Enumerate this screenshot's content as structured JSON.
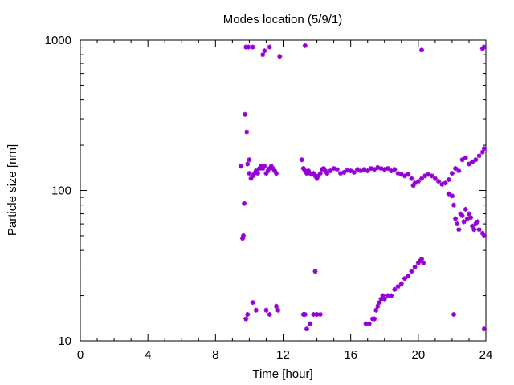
{
  "chart_data": {
    "type": "scatter",
    "title": "Modes location (5/9/1)",
    "xlabel": "Time [hour]",
    "ylabel": "Particle size [nm]",
    "xlim": [
      0,
      24
    ],
    "ylim": [
      10,
      1000
    ],
    "yscale": "log",
    "xticks": [
      0,
      4,
      8,
      12,
      16,
      20,
      24
    ],
    "xtick_labels": [
      "0",
      "4",
      "8",
      "12",
      "16",
      "20",
      "24"
    ],
    "yticks": [
      10,
      100,
      1000
    ],
    "ytick_labels": [
      "10",
      "100",
      "1000"
    ],
    "grid": false,
    "legend": "none",
    "marker_color": "#9400d3",
    "series": [
      {
        "points": [
          [
            9.5,
            145
          ],
          [
            9.6,
            48
          ],
          [
            9.65,
            50
          ],
          [
            9.7,
            82
          ],
          [
            9.75,
            320
          ],
          [
            9.8,
            900
          ],
          [
            9.85,
            245
          ],
          [
            9.9,
            150
          ],
          [
            9.95,
            900
          ],
          [
            9.8,
            14
          ],
          [
            9.9,
            15
          ],
          [
            10.0,
            160
          ],
          [
            10.0,
            130
          ],
          [
            10.1,
            120
          ],
          [
            10.2,
            125
          ],
          [
            10.3,
            130
          ],
          [
            10.4,
            135
          ],
          [
            10.5,
            130
          ],
          [
            10.6,
            140
          ],
          [
            10.7,
            145
          ],
          [
            10.8,
            140
          ],
          [
            10.9,
            145
          ],
          [
            11.0,
            130
          ],
          [
            11.1,
            135
          ],
          [
            11.2,
            140
          ],
          [
            11.3,
            145
          ],
          [
            11.4,
            140
          ],
          [
            11.5,
            135
          ],
          [
            11.6,
            130
          ],
          [
            10.2,
            900
          ],
          [
            10.8,
            800
          ],
          [
            10.9,
            850
          ],
          [
            11.2,
            900
          ],
          [
            11.8,
            780
          ],
          [
            10.2,
            18
          ],
          [
            10.4,
            16
          ],
          [
            11.0,
            16
          ],
          [
            11.2,
            15
          ],
          [
            11.6,
            17
          ],
          [
            11.7,
            16
          ],
          [
            13.1,
            160
          ],
          [
            13.2,
            140
          ],
          [
            13.3,
            135
          ],
          [
            13.4,
            130
          ],
          [
            13.5,
            135
          ],
          [
            13.6,
            130
          ],
          [
            13.7,
            128
          ],
          [
            13.8,
            130
          ],
          [
            13.9,
            125
          ],
          [
            14.0,
            120
          ],
          [
            14.1,
            125
          ],
          [
            14.2,
            130
          ],
          [
            14.3,
            138
          ],
          [
            14.4,
            140
          ],
          [
            14.5,
            135
          ],
          [
            14.6,
            130
          ],
          [
            14.8,
            135
          ],
          [
            15.0,
            140
          ],
          [
            15.2,
            138
          ],
          [
            15.4,
            130
          ],
          [
            15.6,
            132
          ],
          [
            15.8,
            136
          ],
          [
            16.0,
            135
          ],
          [
            16.2,
            132
          ],
          [
            16.4,
            138
          ],
          [
            16.6,
            135
          ],
          [
            16.8,
            138
          ],
          [
            17.0,
            135
          ],
          [
            17.2,
            140
          ],
          [
            17.4,
            138
          ],
          [
            17.6,
            142
          ],
          [
            17.8,
            140
          ],
          [
            18.0,
            138
          ],
          [
            18.2,
            140
          ],
          [
            18.4,
            135
          ],
          [
            18.6,
            138
          ],
          [
            18.8,
            130
          ],
          [
            19.0,
            128
          ],
          [
            19.2,
            125
          ],
          [
            19.4,
            128
          ],
          [
            19.6,
            120
          ],
          [
            19.7,
            108
          ],
          [
            19.8,
            112
          ],
          [
            20.0,
            115
          ],
          [
            20.2,
            120
          ],
          [
            20.4,
            125
          ],
          [
            20.6,
            128
          ],
          [
            20.8,
            125
          ],
          [
            21.0,
            120
          ],
          [
            21.2,
            115
          ],
          [
            21.4,
            110
          ],
          [
            21.6,
            112
          ],
          [
            21.8,
            118
          ],
          [
            22.0,
            130
          ],
          [
            22.2,
            140
          ],
          [
            22.4,
            135
          ],
          [
            22.6,
            160
          ],
          [
            22.8,
            165
          ],
          [
            23.0,
            150
          ],
          [
            23.2,
            155
          ],
          [
            23.4,
            160
          ],
          [
            23.6,
            170
          ],
          [
            23.8,
            180
          ],
          [
            23.9,
            190
          ],
          [
            13.3,
            920
          ],
          [
            20.2,
            860
          ],
          [
            23.9,
            900
          ],
          [
            23.8,
            880
          ],
          [
            13.2,
            15
          ],
          [
            13.3,
            15
          ],
          [
            13.4,
            12
          ],
          [
            13.6,
            13
          ],
          [
            13.8,
            15
          ],
          [
            14.0,
            15
          ],
          [
            14.2,
            15
          ],
          [
            13.9,
            29
          ],
          [
            16.9,
            13
          ],
          [
            17.1,
            13
          ],
          [
            17.3,
            14
          ],
          [
            17.4,
            14
          ],
          [
            17.5,
            16
          ],
          [
            17.6,
            17
          ],
          [
            17.7,
            18
          ],
          [
            17.8,
            19
          ],
          [
            17.9,
            20
          ],
          [
            18.0,
            19
          ],
          [
            18.2,
            20
          ],
          [
            18.4,
            20
          ],
          [
            18.6,
            22
          ],
          [
            18.8,
            23
          ],
          [
            19.0,
            24
          ],
          [
            19.2,
            26
          ],
          [
            19.4,
            27
          ],
          [
            19.6,
            29
          ],
          [
            19.8,
            31
          ],
          [
            20.0,
            33
          ],
          [
            20.1,
            34
          ],
          [
            20.2,
            35
          ],
          [
            20.3,
            33
          ],
          [
            21.8,
            95
          ],
          [
            22.0,
            92
          ],
          [
            22.1,
            80
          ],
          [
            22.2,
            65
          ],
          [
            22.3,
            60
          ],
          [
            22.4,
            55
          ],
          [
            22.5,
            70
          ],
          [
            22.6,
            68
          ],
          [
            22.7,
            62
          ],
          [
            22.8,
            75
          ],
          [
            22.9,
            65
          ],
          [
            23.0,
            70
          ],
          [
            23.1,
            66
          ],
          [
            23.2,
            58
          ],
          [
            23.3,
            55
          ],
          [
            23.4,
            60
          ],
          [
            23.5,
            62
          ],
          [
            23.6,
            55
          ],
          [
            23.8,
            52
          ],
          [
            23.9,
            50
          ],
          [
            22.1,
            15
          ],
          [
            23.9,
            12
          ]
        ]
      }
    ]
  }
}
